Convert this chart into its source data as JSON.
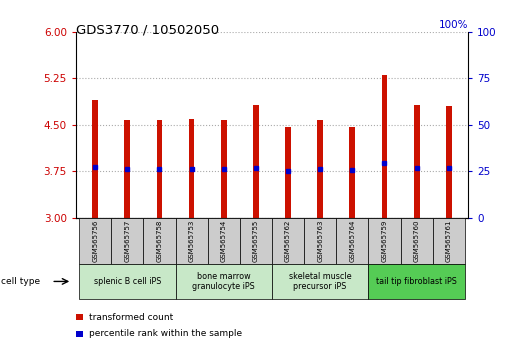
{
  "title": "GDS3770 / 10502050",
  "samples": [
    "GSM565756",
    "GSM565757",
    "GSM565758",
    "GSM565753",
    "GSM565754",
    "GSM565755",
    "GSM565762",
    "GSM565763",
    "GSM565764",
    "GSM565759",
    "GSM565760",
    "GSM565761"
  ],
  "bar_top": [
    4.9,
    4.57,
    4.58,
    4.6,
    4.58,
    4.82,
    4.46,
    4.57,
    4.46,
    5.3,
    4.82,
    4.8
  ],
  "bar_bottom": 3.0,
  "blue_dot_y": [
    3.82,
    3.79,
    3.79,
    3.79,
    3.79,
    3.8,
    3.76,
    3.79,
    3.77,
    3.88,
    3.81,
    3.81
  ],
  "ylim": [
    3.0,
    6.0
  ],
  "yticks_left": [
    3,
    3.75,
    4.5,
    5.25,
    6
  ],
  "yticks_right": [
    0,
    25,
    50,
    75,
    100
  ],
  "ylabel_left_color": "#cc0000",
  "ylabel_right_color": "#0000cc",
  "bar_color": "#cc1100",
  "dot_color": "#0000cc",
  "cell_type_label": "cell type",
  "cell_groups": [
    {
      "label": "splenic B cell iPS",
      "samples": [
        "GSM565756",
        "GSM565757",
        "GSM565758"
      ],
      "color": "#c8e8c8"
    },
    {
      "label": "bone marrow\ngranulocyte iPS",
      "samples": [
        "GSM565753",
        "GSM565754",
        "GSM565755"
      ],
      "color": "#c8e8c8"
    },
    {
      "label": "skeletal muscle\nprecursor iPS",
      "samples": [
        "GSM565762",
        "GSM565763",
        "GSM565764"
      ],
      "color": "#c8e8c8"
    },
    {
      "label": "tail tip fibroblast iPS",
      "samples": [
        "GSM565759",
        "GSM565760",
        "GSM565761"
      ],
      "color": "#55cc55"
    }
  ],
  "legend_items": [
    {
      "label": "transformed count",
      "color": "#cc1100"
    },
    {
      "label": "percentile rank within the sample",
      "color": "#0000cc"
    }
  ],
  "grid_color": "#aaaaaa",
  "background_color": "#ffffff",
  "sample_box_color": "#cccccc",
  "right_axis_pct_label": "100%"
}
